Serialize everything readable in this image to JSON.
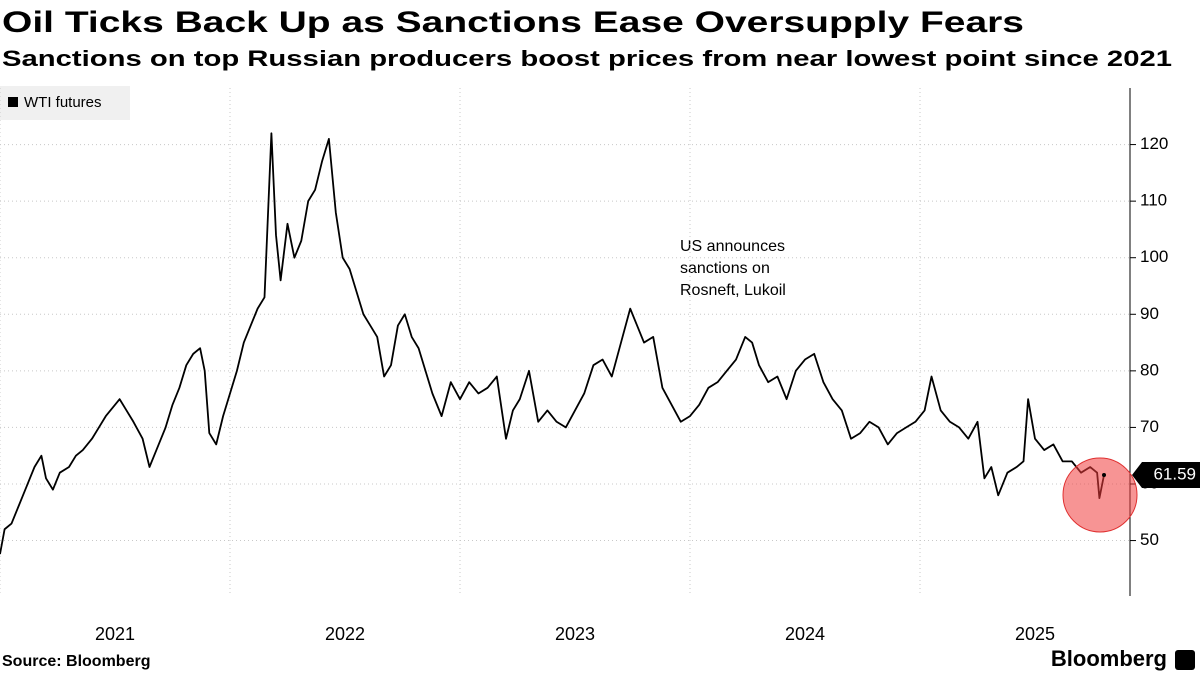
{
  "chart_data": {
    "type": "line",
    "title": "Oil Ticks Back Up as Sanctions Ease Oversupply Fears",
    "subtitle": "Sanctions on top Russian producers boost prices from near lowest point since 2021",
    "source": "Source: Bloomberg",
    "brand": "Bloomberg",
    "annotation": "US announces sanctions on Rosneft, Lukoil",
    "legend": "top-left",
    "grid": true,
    "x": [
      2021.0,
      2021.02,
      2021.05,
      2021.08,
      2021.1,
      2021.13,
      2021.15,
      2021.18,
      2021.2,
      2021.23,
      2021.26,
      2021.3,
      2021.33,
      2021.36,
      2021.4,
      2021.43,
      2021.46,
      2021.5,
      2021.52,
      2021.55,
      2021.58,
      2021.62,
      2021.65,
      2021.68,
      2021.72,
      2021.75,
      2021.78,
      2021.81,
      2021.84,
      2021.87,
      2021.89,
      2021.91,
      2021.94,
      2021.97,
      2022.0,
      2022.03,
      2022.06,
      2022.09,
      2022.12,
      2022.15,
      2022.18,
      2022.2,
      2022.22,
      2022.25,
      2022.28,
      2022.31,
      2022.34,
      2022.37,
      2022.4,
      2022.43,
      2022.46,
      2022.49,
      2022.52,
      2022.55,
      2022.58,
      2022.61,
      2022.64,
      2022.67,
      2022.7,
      2022.73,
      2022.76,
      2022.79,
      2022.82,
      2022.85,
      2022.88,
      2022.92,
      2022.96,
      2023.0,
      2023.04,
      2023.08,
      2023.12,
      2023.16,
      2023.2,
      2023.23,
      2023.26,
      2023.3,
      2023.34,
      2023.38,
      2023.42,
      2023.46,
      2023.5,
      2023.54,
      2023.58,
      2023.62,
      2023.66,
      2023.7,
      2023.74,
      2023.77,
      2023.8,
      2023.84,
      2023.88,
      2023.92,
      2023.96,
      2024.0,
      2024.04,
      2024.08,
      2024.12,
      2024.16,
      2024.2,
      2024.24,
      2024.27,
      2024.3,
      2024.34,
      2024.38,
      2024.42,
      2024.46,
      2024.5,
      2024.54,
      2024.58,
      2024.62,
      2024.66,
      2024.7,
      2024.74,
      2024.78,
      2024.82,
      2024.86,
      2024.9,
      2024.94,
      2024.98,
      2025.02,
      2025.05,
      2025.09,
      2025.13,
      2025.17,
      2025.21,
      2025.25,
      2025.28,
      2025.31,
      2025.34,
      2025.38,
      2025.42,
      2025.45,
      2025.47,
      2025.5,
      2025.54,
      2025.58,
      2025.62,
      2025.66,
      2025.7,
      2025.74,
      2025.77,
      2025.78,
      2025.8
    ],
    "series": [
      {
        "name": "WTI futures",
        "color": "#000000",
        "values": [
          47.6,
          52,
          53,
          56,
          58,
          61,
          63,
          65,
          61,
          59,
          62,
          63,
          65,
          66,
          68,
          70,
          72,
          74,
          75,
          73,
          71,
          68,
          63,
          66,
          70,
          74,
          77,
          81,
          83,
          84,
          80,
          69,
          67,
          72,
          76,
          80,
          85,
          88,
          91,
          93,
          122,
          104,
          96,
          106,
          100,
          103,
          110,
          112,
          117,
          121,
          108,
          100,
          98,
          94,
          90,
          88,
          86,
          79,
          81,
          88,
          90,
          86,
          84,
          80,
          76,
          72,
          78,
          75,
          78,
          76,
          77,
          79,
          68,
          73,
          75,
          80,
          71,
          73,
          71,
          70,
          73,
          76,
          81,
          82,
          79,
          85,
          91,
          88,
          85,
          86,
          77,
          74,
          71,
          72,
          74,
          77,
          78,
          80,
          82,
          86,
          85,
          81,
          78,
          79,
          75,
          80,
          82,
          83,
          78,
          75,
          73,
          68,
          69,
          71,
          70,
          67,
          69,
          70,
          71,
          73,
          79,
          73,
          71,
          70,
          68,
          71,
          61,
          63,
          58,
          62,
          63,
          64,
          75,
          68,
          66,
          67,
          64,
          64,
          62,
          63,
          62,
          57.5,
          61.59
        ]
      }
    ],
    "xlim": [
      2021,
      2025.913
    ],
    "xticks": [
      2021,
      2022,
      2023,
      2024,
      2025
    ],
    "ylim": [
      40.2,
      130
    ],
    "yticks": [
      50,
      60,
      70,
      80,
      90,
      100,
      110,
      120
    ]
  }
}
